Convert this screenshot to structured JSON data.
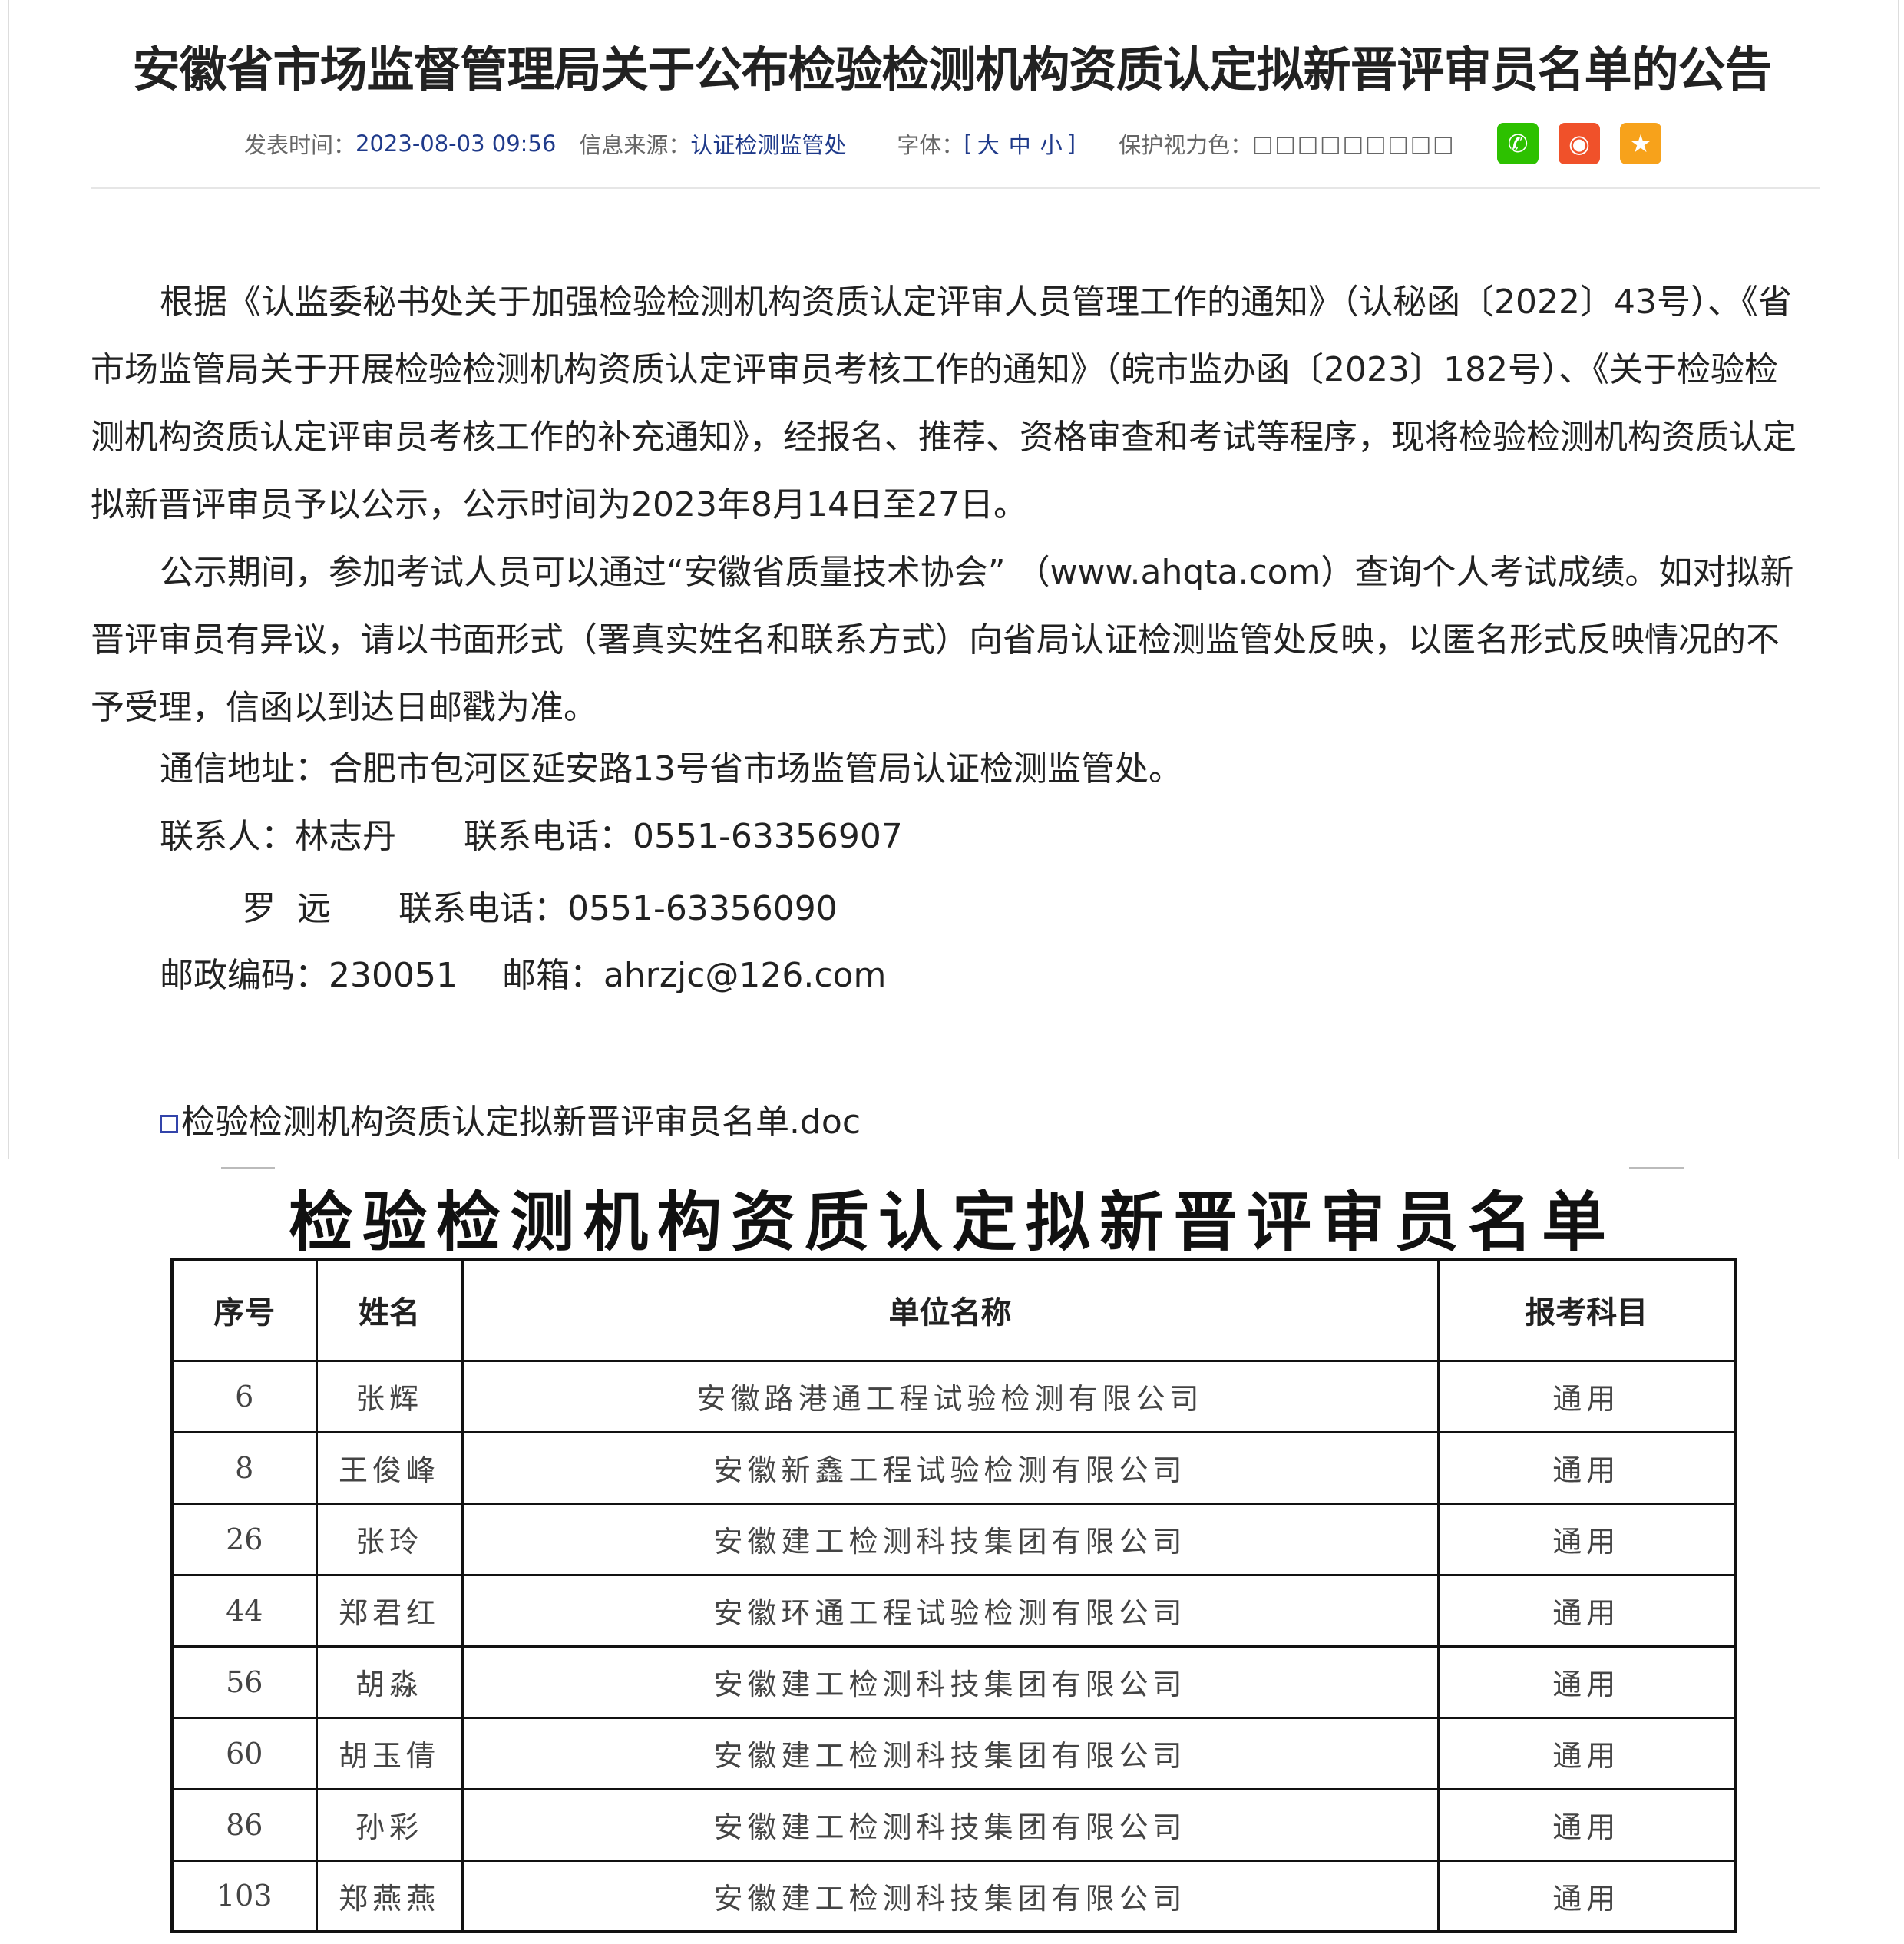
{
  "article": {
    "title": "安徽省市场监督管理局关于公布检验检测机构资质认定拟新晋评审员名单的公告",
    "meta": {
      "publish_label": "发表时间：",
      "publish_time": "2023-08-03 09:56",
      "source_label": "信息来源：",
      "source": "认证检测监管处",
      "font_label": "字体：",
      "font_open": "[",
      "font_large": "大",
      "font_medium": "中",
      "font_small": "小",
      "font_close": "]",
      "eye_label": "保护视力色：",
      "eye_colors": "□□□□□□□□□"
    },
    "share": {
      "wechat_color": "#2dc100",
      "weibo_color": "#f0512a",
      "favorite_color": "#f7a21b"
    },
    "paragraphs": [
      "根据《认监委秘书处关于加强检验检测机构资质认定评审人员管理工作的通知》（认秘函〔2022〕43号）、《省市场监管局关于开展检验检测机构资质认定评审员考核工作的通知》（皖市监办函〔2023〕182号）、《关于检验检测机构资质认定评审员考核工作的补充通知》，经报名、推荐、资格审查和考试等程序，现将检验检测机构资质认定拟新晋评审员予以公示，公示时间为2023年8月14日至27日。",
      "公示期间，参加考试人员可以通过“安徽省质量技术协会” （www.ahqta.com）查询个人考试成绩。如对拟新晋评审员有异议，请以书面形式（署真实姓名和联系方式）向省局认证检测监管处反映，以匿名形式反映情况的不予受理，信函以到达日邮戳为准。"
    ],
    "address": "通信地址：合肥市包河区延安路13号省市场监管局认证检测监管处。",
    "contact1": "联系人：林志丹　　联系电话：0551-63356907",
    "contact2": "罗  远　　联系电话：0551-63356090",
    "postal": "邮政编码：230051　 邮箱：ahrzjc@126.com",
    "attachment": "检验检测机构资质认定拟新晋评审员名单.doc"
  },
  "document": {
    "title": "检验检测机构资质认定拟新晋评审员名单",
    "headers": [
      "序号",
      "姓名",
      "单位名称",
      "报考科目"
    ],
    "rows": [
      [
        "6",
        "张辉",
        "安徽路港通工程试验检测有限公司",
        "通用"
      ],
      [
        "8",
        "王俊峰",
        "安徽新鑫工程试验检测有限公司",
        "通用"
      ],
      [
        "26",
        "张玲",
        "安徽建工检测科技集团有限公司",
        "通用"
      ],
      [
        "44",
        "郑君红",
        "安徽环通工程试验检测有限公司",
        "通用"
      ],
      [
        "56",
        "胡淼",
        "安徽建工检测科技集团有限公司",
        "通用"
      ],
      [
        "60",
        "胡玉倩",
        "安徽建工检测科技集团有限公司",
        "通用"
      ],
      [
        "86",
        "孙彩",
        "安徽建工检测科技集团有限公司",
        "通用"
      ],
      [
        "103",
        "郑燕燕",
        "安徽建工检测科技集团有限公司",
        "通用"
      ]
    ]
  }
}
